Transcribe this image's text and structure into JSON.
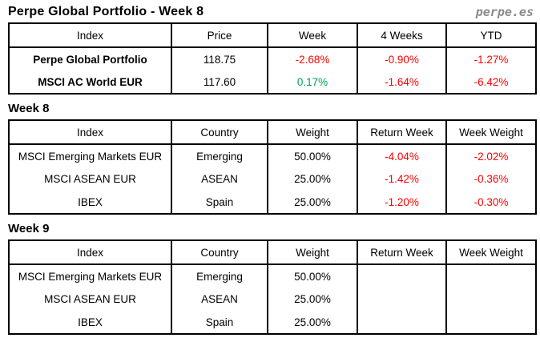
{
  "page": {
    "title": "Perpe Global Portfolio - Week 8",
    "logo": "perpe.es"
  },
  "colors": {
    "negative": "#ff0000",
    "positive": "#00a050",
    "logo_gray": "#8a8a8a"
  },
  "summary_table": {
    "headers": [
      "Index",
      "Price",
      "Week",
      "4 Weeks",
      "YTD"
    ],
    "rows": [
      {
        "index": "Perpe Global Portfolio",
        "price": "118.75",
        "week": "-2.68%",
        "four_weeks": "-0.90%",
        "ytd": "-1.27%"
      },
      {
        "index": "MSCI AC World EUR",
        "price": "117.60",
        "week": "0.17%",
        "four_weeks": "-1.64%",
        "ytd": "-6.42%"
      }
    ]
  },
  "week8": {
    "heading": "Week 8",
    "headers": [
      "Index",
      "Country",
      "Weight",
      "Return Week",
      "Week Weight"
    ],
    "rows": [
      {
        "index": "MSCI Emerging Markets EUR",
        "country": "Emerging",
        "weight": "50.00%",
        "return_week": "-4.04%",
        "week_weight": "-2.02%"
      },
      {
        "index": "MSCI ASEAN EUR",
        "country": "ASEAN",
        "weight": "25.00%",
        "return_week": "-1.42%",
        "week_weight": "-0.36%"
      },
      {
        "index": "IBEX",
        "country": "Spain",
        "weight": "25.00%",
        "return_week": "-1.20%",
        "week_weight": "-0.30%"
      }
    ]
  },
  "week9": {
    "heading": "Week 9",
    "headers": [
      "Index",
      "Country",
      "Weight",
      "Return Week",
      "Week Weight"
    ],
    "rows": [
      {
        "index": "MSCI Emerging Markets EUR",
        "country": "Emerging",
        "weight": "50.00%",
        "return_week": "",
        "week_weight": ""
      },
      {
        "index": "MSCI ASEAN EUR",
        "country": "ASEAN",
        "weight": "25.00%",
        "return_week": "",
        "week_weight": ""
      },
      {
        "index": "IBEX",
        "country": "Spain",
        "weight": "25.00%",
        "return_week": "",
        "week_weight": ""
      }
    ]
  }
}
